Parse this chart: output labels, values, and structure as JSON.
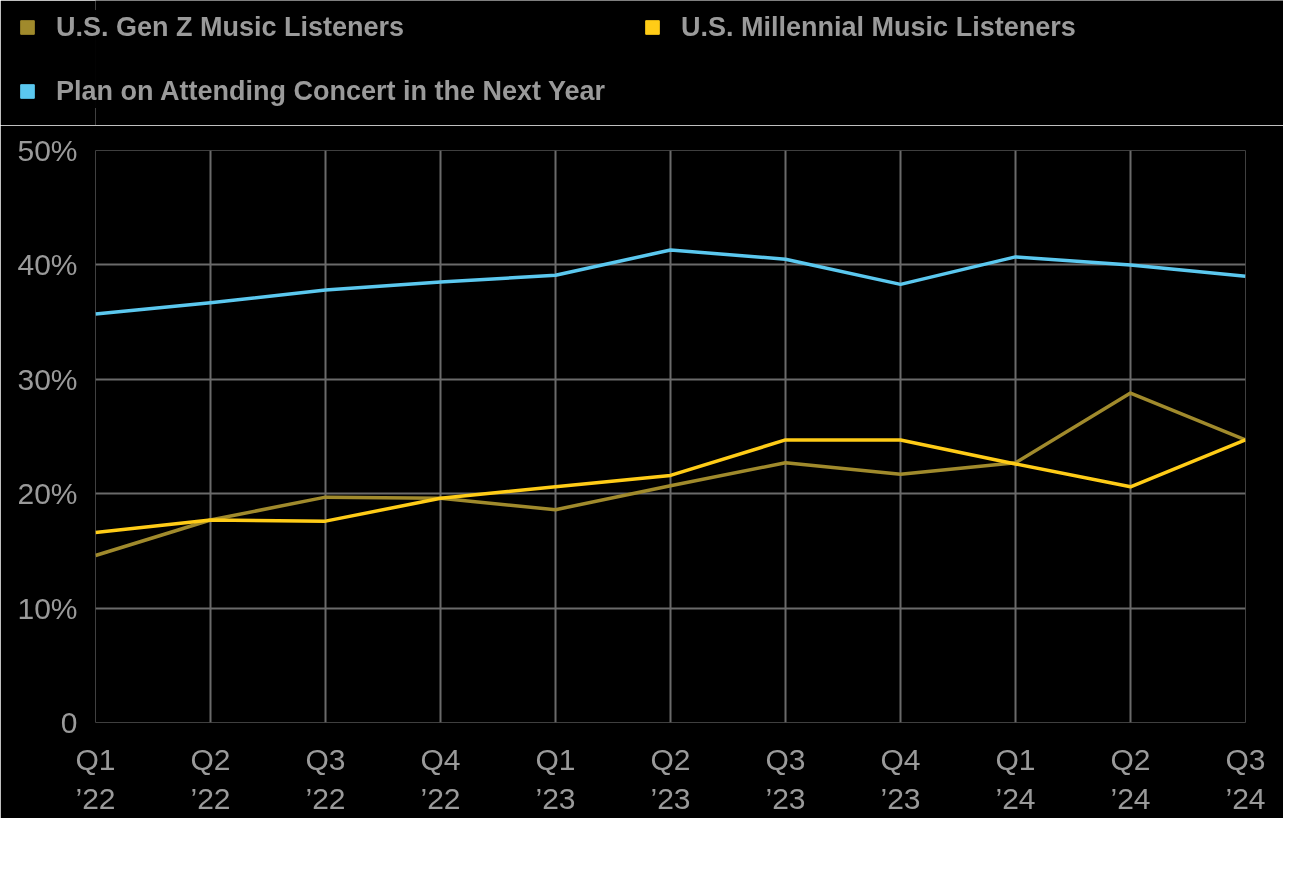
{
  "chart_data": {
    "type": "line",
    "categories": [
      "Q1\n’22",
      "Q2\n’22",
      "Q3\n’22",
      "Q4\n’22",
      "Q1\n’23",
      "Q2\n’23",
      "Q3\n’23",
      "Q4\n’23",
      "Q1\n’24",
      "Q2\n’24",
      "Q3\n’24"
    ],
    "series": [
      {
        "name": "U.S. Gen Z Music Listeners",
        "color": "#a08a2c",
        "values": [
          14.6,
          17.7,
          19.7,
          19.6,
          18.6,
          20.7,
          22.7,
          21.7,
          22.7,
          28.8,
          24.7
        ]
      },
      {
        "name": "U.S. Millennial Music Listeners",
        "color": "#ffcc17",
        "values": [
          16.6,
          17.7,
          17.6,
          19.6,
          20.6,
          21.6,
          24.7,
          24.7,
          22.6,
          20.6,
          24.7
        ]
      },
      {
        "name": "Plan on Attending Concert in the Next Year",
        "color": "#5bc8ef",
        "values": [
          35.7,
          36.7,
          37.8,
          38.5,
          39.1,
          41.3,
          40.5,
          38.3,
          40.7,
          40.0,
          39.0
        ]
      }
    ],
    "ylim": [
      0,
      50
    ],
    "yticks": [
      {
        "value": 0,
        "label": "0"
      },
      {
        "value": 10,
        "label": "10%"
      },
      {
        "value": 20,
        "label": "20%"
      },
      {
        "value": 30,
        "label": "30%"
      },
      {
        "value": 40,
        "label": "40%"
      },
      {
        "value": 50,
        "label": "50%"
      }
    ],
    "grid": true,
    "legend": "top",
    "marker": "none",
    "line_style": "solid"
  }
}
